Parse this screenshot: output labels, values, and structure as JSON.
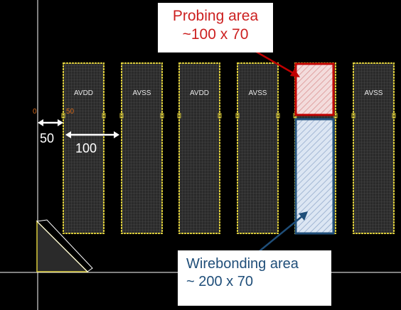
{
  "pads": [
    "AVDD",
    "AVSS",
    "AVDD",
    "AVSS",
    "",
    "AVSS"
  ],
  "origin_labels": {
    "left": "0",
    "right": "50"
  },
  "dimensions": {
    "gap": "50",
    "pad_pitch": "100"
  },
  "callouts": {
    "probing": {
      "line1": "Probing area",
      "line2": "~100 x 70"
    },
    "wirebonding": {
      "line1": "Wirebonding area",
      "line2": "~ 200 x 70"
    }
  },
  "colors": {
    "background": "#000000",
    "pad_outline": "#d8c93a",
    "probing": "#cc1f1f",
    "wirebonding": "#1f4e79",
    "guide_line": "#ffffff"
  }
}
